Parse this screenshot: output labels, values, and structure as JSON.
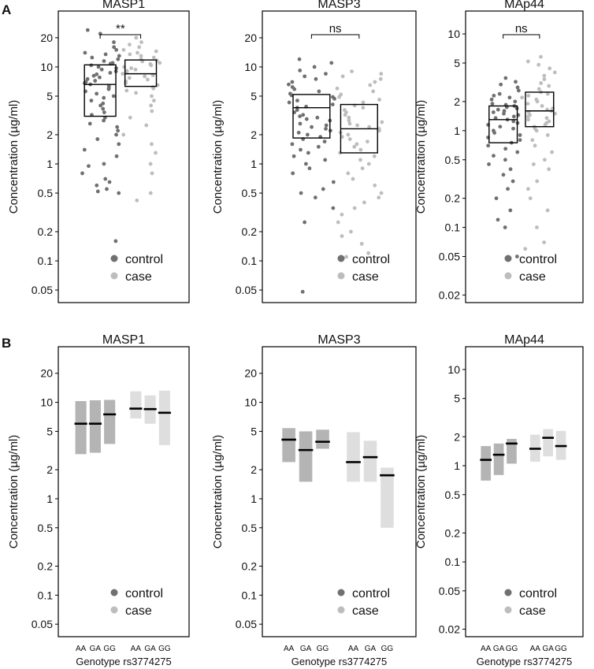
{
  "colors": {
    "control": "#707070",
    "case": "#bdbdbd",
    "frame": "#000000"
  },
  "panel_labels": [
    "A",
    "B"
  ],
  "chart_data": [
    {
      "type": "scatter",
      "panel": "A",
      "title": "MASP1",
      "ylabel": "Concentration (µg/ml)",
      "yscale": "log",
      "ylim": [
        0.04,
        35
      ],
      "ticks": [
        0.05,
        0.1,
        0.2,
        0.5,
        1,
        2,
        5,
        10,
        20
      ],
      "tick_labels": [
        "0.05",
        "0.1",
        "0.2",
        "0.5",
        "1",
        "2",
        "5",
        "10",
        "20"
      ],
      "significance": "**",
      "legend": [
        "control",
        "case"
      ],
      "groups": [
        {
          "name": "control",
          "median": 6.6,
          "q1": 3.1,
          "q3": 10.5,
          "points": [
            24,
            22,
            18,
            16,
            15,
            14,
            13.5,
            13,
            12.5,
            12,
            11.5,
            11,
            10.8,
            10.4,
            10,
            9.7,
            9.4,
            9,
            8.7,
            8.4,
            8.1,
            7.8,
            7.5,
            7.2,
            7,
            6.8,
            6.6,
            6.4,
            6.1,
            5.9,
            5.6,
            5.3,
            5,
            4.8,
            4.5,
            4.2,
            4,
            3.7,
            3.4,
            3.2,
            3,
            2.8,
            2.6,
            2.4,
            2.2,
            2,
            1.8,
            1.6,
            1.4,
            1.2,
            1,
            0.95,
            0.8,
            0.7,
            0.65,
            0.6,
            0.55,
            0.52,
            0.5,
            0.16
          ]
        },
        {
          "name": "case",
          "median": 8.5,
          "q1": 6.3,
          "q3": 11.8,
          "points": [
            20,
            18,
            17,
            16,
            15,
            14.5,
            14,
            13.5,
            13,
            12.5,
            12,
            11.7,
            11.4,
            11,
            10.7,
            10.4,
            10,
            9.7,
            9.4,
            9.1,
            8.8,
            8.5,
            8.2,
            8,
            7.7,
            7.4,
            7.1,
            6.8,
            6.5,
            6.2,
            6,
            5.7,
            5.4,
            5,
            4.5,
            4,
            3.5,
            3,
            2.5,
            2,
            1.6,
            1.3,
            1,
            0.8,
            0.5,
            0.42
          ]
        }
      ]
    },
    {
      "type": "scatter",
      "panel": "A",
      "title": "MASP3",
      "ylabel": "Concentration (µg/ml)",
      "yscale": "log",
      "ylim": [
        0.04,
        35
      ],
      "ticks": [
        0.05,
        0.1,
        0.2,
        0.5,
        1,
        2,
        5,
        10,
        20
      ],
      "tick_labels": [
        "0.05",
        "0.1",
        "0.2",
        "0.5",
        "1",
        "2",
        "5",
        "10",
        "20"
      ],
      "significance": "ns",
      "legend": [
        "control",
        "case"
      ],
      "groups": [
        {
          "name": "control",
          "median": 3.8,
          "q1": 1.85,
          "q3": 5.2,
          "points": [
            12,
            11,
            10,
            9.2,
            8.5,
            8,
            7.5,
            7,
            6.6,
            6.2,
            5.9,
            5.6,
            5.3,
            5.1,
            4.9,
            4.7,
            4.5,
            4.3,
            4.1,
            3.9,
            3.8,
            3.6,
            3.4,
            3.2,
            3.1,
            3,
            2.9,
            2.8,
            2.6,
            2.5,
            2.4,
            2.3,
            2.2,
            2.1,
            2,
            1.9,
            1.8,
            1.7,
            1.6,
            1.5,
            1.4,
            1.3,
            1.2,
            1.1,
            1,
            0.9,
            0.8,
            0.65,
            0.55,
            0.5,
            0.45,
            0.35,
            0.25,
            0.048
          ]
        },
        {
          "name": "case",
          "median": 2.3,
          "q1": 1.3,
          "q3": 4.1,
          "points": [
            9,
            8.5,
            8,
            7.5,
            7,
            6.5,
            6,
            5.6,
            5.2,
            4.9,
            4.6,
            4.3,
            4,
            3.8,
            3.6,
            3.4,
            3.2,
            3,
            2.8,
            2.7,
            2.6,
            2.5,
            2.4,
            2.3,
            2.2,
            2.1,
            2,
            1.9,
            1.8,
            1.7,
            1.6,
            1.5,
            1.4,
            1.3,
            1.2,
            1.1,
            1,
            0.9,
            0.8,
            0.7,
            0.6,
            0.5,
            0.45,
            0.4,
            0.35,
            0.3,
            0.25,
            0.2,
            0.18,
            0.15,
            0.12,
            0.11
          ]
        }
      ]
    },
    {
      "type": "scatter",
      "panel": "A",
      "title": "MAp44",
      "ylabel": "Concentration (µg/ml)",
      "yscale": "log",
      "ylim": [
        0.018,
        16
      ],
      "ticks": [
        0.02,
        0.05,
        0.1,
        0.2,
        0.5,
        1,
        2,
        5,
        10
      ],
      "tick_labels": [
        "0.02",
        "0.05",
        "0.1",
        "0.2",
        "0.5",
        "1",
        "2",
        "5",
        "10"
      ],
      "significance": "ns",
      "legend": [
        "control",
        "case"
      ],
      "groups": [
        {
          "name": "control",
          "median": 1.3,
          "q1": 0.75,
          "q3": 1.8,
          "points": [
            3.5,
            3.2,
            3,
            2.8,
            2.6,
            2.4,
            2.3,
            2.2,
            2.1,
            2,
            1.9,
            1.85,
            1.8,
            1.75,
            1.7,
            1.65,
            1.6,
            1.55,
            1.5,
            1.45,
            1.4,
            1.35,
            1.3,
            1.25,
            1.2,
            1.15,
            1.1,
            1.05,
            1,
            0.95,
            0.9,
            0.85,
            0.8,
            0.75,
            0.7,
            0.65,
            0.6,
            0.55,
            0.5,
            0.45,
            0.4,
            0.35,
            0.3,
            0.25,
            0.2,
            0.15,
            0.12,
            0.1,
            0.05
          ]
        },
        {
          "name": "case",
          "median": 1.6,
          "q1": 1.1,
          "q3": 2.5,
          "points": [
            5.8,
            5.2,
            4.8,
            4.4,
            4,
            3.7,
            3.4,
            3.1,
            2.9,
            2.7,
            2.5,
            2.4,
            2.3,
            2.2,
            2.1,
            2,
            1.9,
            1.8,
            1.7,
            1.65,
            1.6,
            1.55,
            1.5,
            1.45,
            1.4,
            1.35,
            1.3,
            1.25,
            1.2,
            1.15,
            1.1,
            1.05,
            1,
            0.9,
            0.8,
            0.7,
            0.6,
            0.5,
            0.45,
            0.4,
            0.3,
            0.25,
            0.2,
            0.15,
            0.1,
            0.07,
            0.06
          ]
        }
      ]
    },
    {
      "type": "range",
      "panel": "B",
      "title": "MASP1",
      "ylabel": "Concentration (µg/ml)",
      "yscale": "log",
      "ylim": [
        0.04,
        35
      ],
      "ticks": [
        0.05,
        0.1,
        0.2,
        0.5,
        1,
        2,
        5,
        10,
        20
      ],
      "tick_labels": [
        "0.05",
        "0.1",
        "0.2",
        "0.5",
        "1",
        "2",
        "5",
        "10",
        "20"
      ],
      "xlabel": "Genotype rs3774275",
      "legend": [
        "control",
        "case"
      ],
      "genotypes": [
        "AA",
        "GA",
        "GG"
      ],
      "groups": [
        {
          "name": "control",
          "bars": [
            {
              "median": 6.0,
              "low": 2.9,
              "high": 10.3
            },
            {
              "median": 6.0,
              "low": 3.0,
              "high": 10.5
            },
            {
              "median": 7.5,
              "low": 3.7,
              "high": 10.6
            }
          ]
        },
        {
          "name": "case",
          "bars": [
            {
              "median": 8.6,
              "low": 6.8,
              "high": 13
            },
            {
              "median": 8.5,
              "low": 6.0,
              "high": 11.8
            },
            {
              "median": 7.8,
              "low": 3.6,
              "high": 13.2
            }
          ]
        }
      ]
    },
    {
      "type": "range",
      "panel": "B",
      "title": "MASP3",
      "ylabel": "Concentration (µg/ml)",
      "yscale": "log",
      "ylim": [
        0.04,
        35
      ],
      "ticks": [
        0.05,
        0.1,
        0.2,
        0.5,
        1,
        2,
        5,
        10,
        20
      ],
      "tick_labels": [
        "0.05",
        "0.1",
        "0.2",
        "0.5",
        "1",
        "2",
        "5",
        "10",
        "20"
      ],
      "xlabel": "Genotype rs3774275",
      "legend": [
        "control",
        "case"
      ],
      "genotypes": [
        "AA",
        "GA",
        "GG"
      ],
      "groups": [
        {
          "name": "control",
          "bars": [
            {
              "median": 4.1,
              "low": 2.4,
              "high": 5.4
            },
            {
              "median": 3.2,
              "low": 1.5,
              "high": 5.0
            },
            {
              "median": 3.9,
              "low": 3.3,
              "high": 5.2
            }
          ]
        },
        {
          "name": "case",
          "bars": [
            {
              "median": 2.4,
              "low": 1.5,
              "high": 4.9
            },
            {
              "median": 2.7,
              "low": 1.5,
              "high": 4.0
            },
            {
              "median": 1.75,
              "low": 0.5,
              "high": 2.1
            }
          ]
        }
      ]
    },
    {
      "type": "range",
      "panel": "B",
      "title": "MAp44",
      "ylabel": "Concentration (µg/ml)",
      "yscale": "log",
      "ylim": [
        0.018,
        16
      ],
      "ticks": [
        0.02,
        0.05,
        0.1,
        0.2,
        0.5,
        1,
        2,
        5,
        10
      ],
      "tick_labels": [
        "0.02",
        "0.05",
        "0.1",
        "0.2",
        "0.5",
        "1",
        "2",
        "5",
        "10"
      ],
      "xlabel": "Genotype rs3774275",
      "legend": [
        "control",
        "case"
      ],
      "genotypes": [
        "AA",
        "GA",
        "GG"
      ],
      "groups": [
        {
          "name": "control",
          "bars": [
            {
              "median": 1.15,
              "low": 0.7,
              "high": 1.6
            },
            {
              "median": 1.3,
              "low": 0.8,
              "high": 1.7
            },
            {
              "median": 1.7,
              "low": 1.05,
              "high": 1.9
            }
          ]
        },
        {
          "name": "case",
          "bars": [
            {
              "median": 1.5,
              "low": 1.1,
              "high": 2.1
            },
            {
              "median": 1.95,
              "low": 1.25,
              "high": 2.4
            },
            {
              "median": 1.6,
              "low": 1.15,
              "high": 2.3
            }
          ]
        }
      ]
    }
  ]
}
